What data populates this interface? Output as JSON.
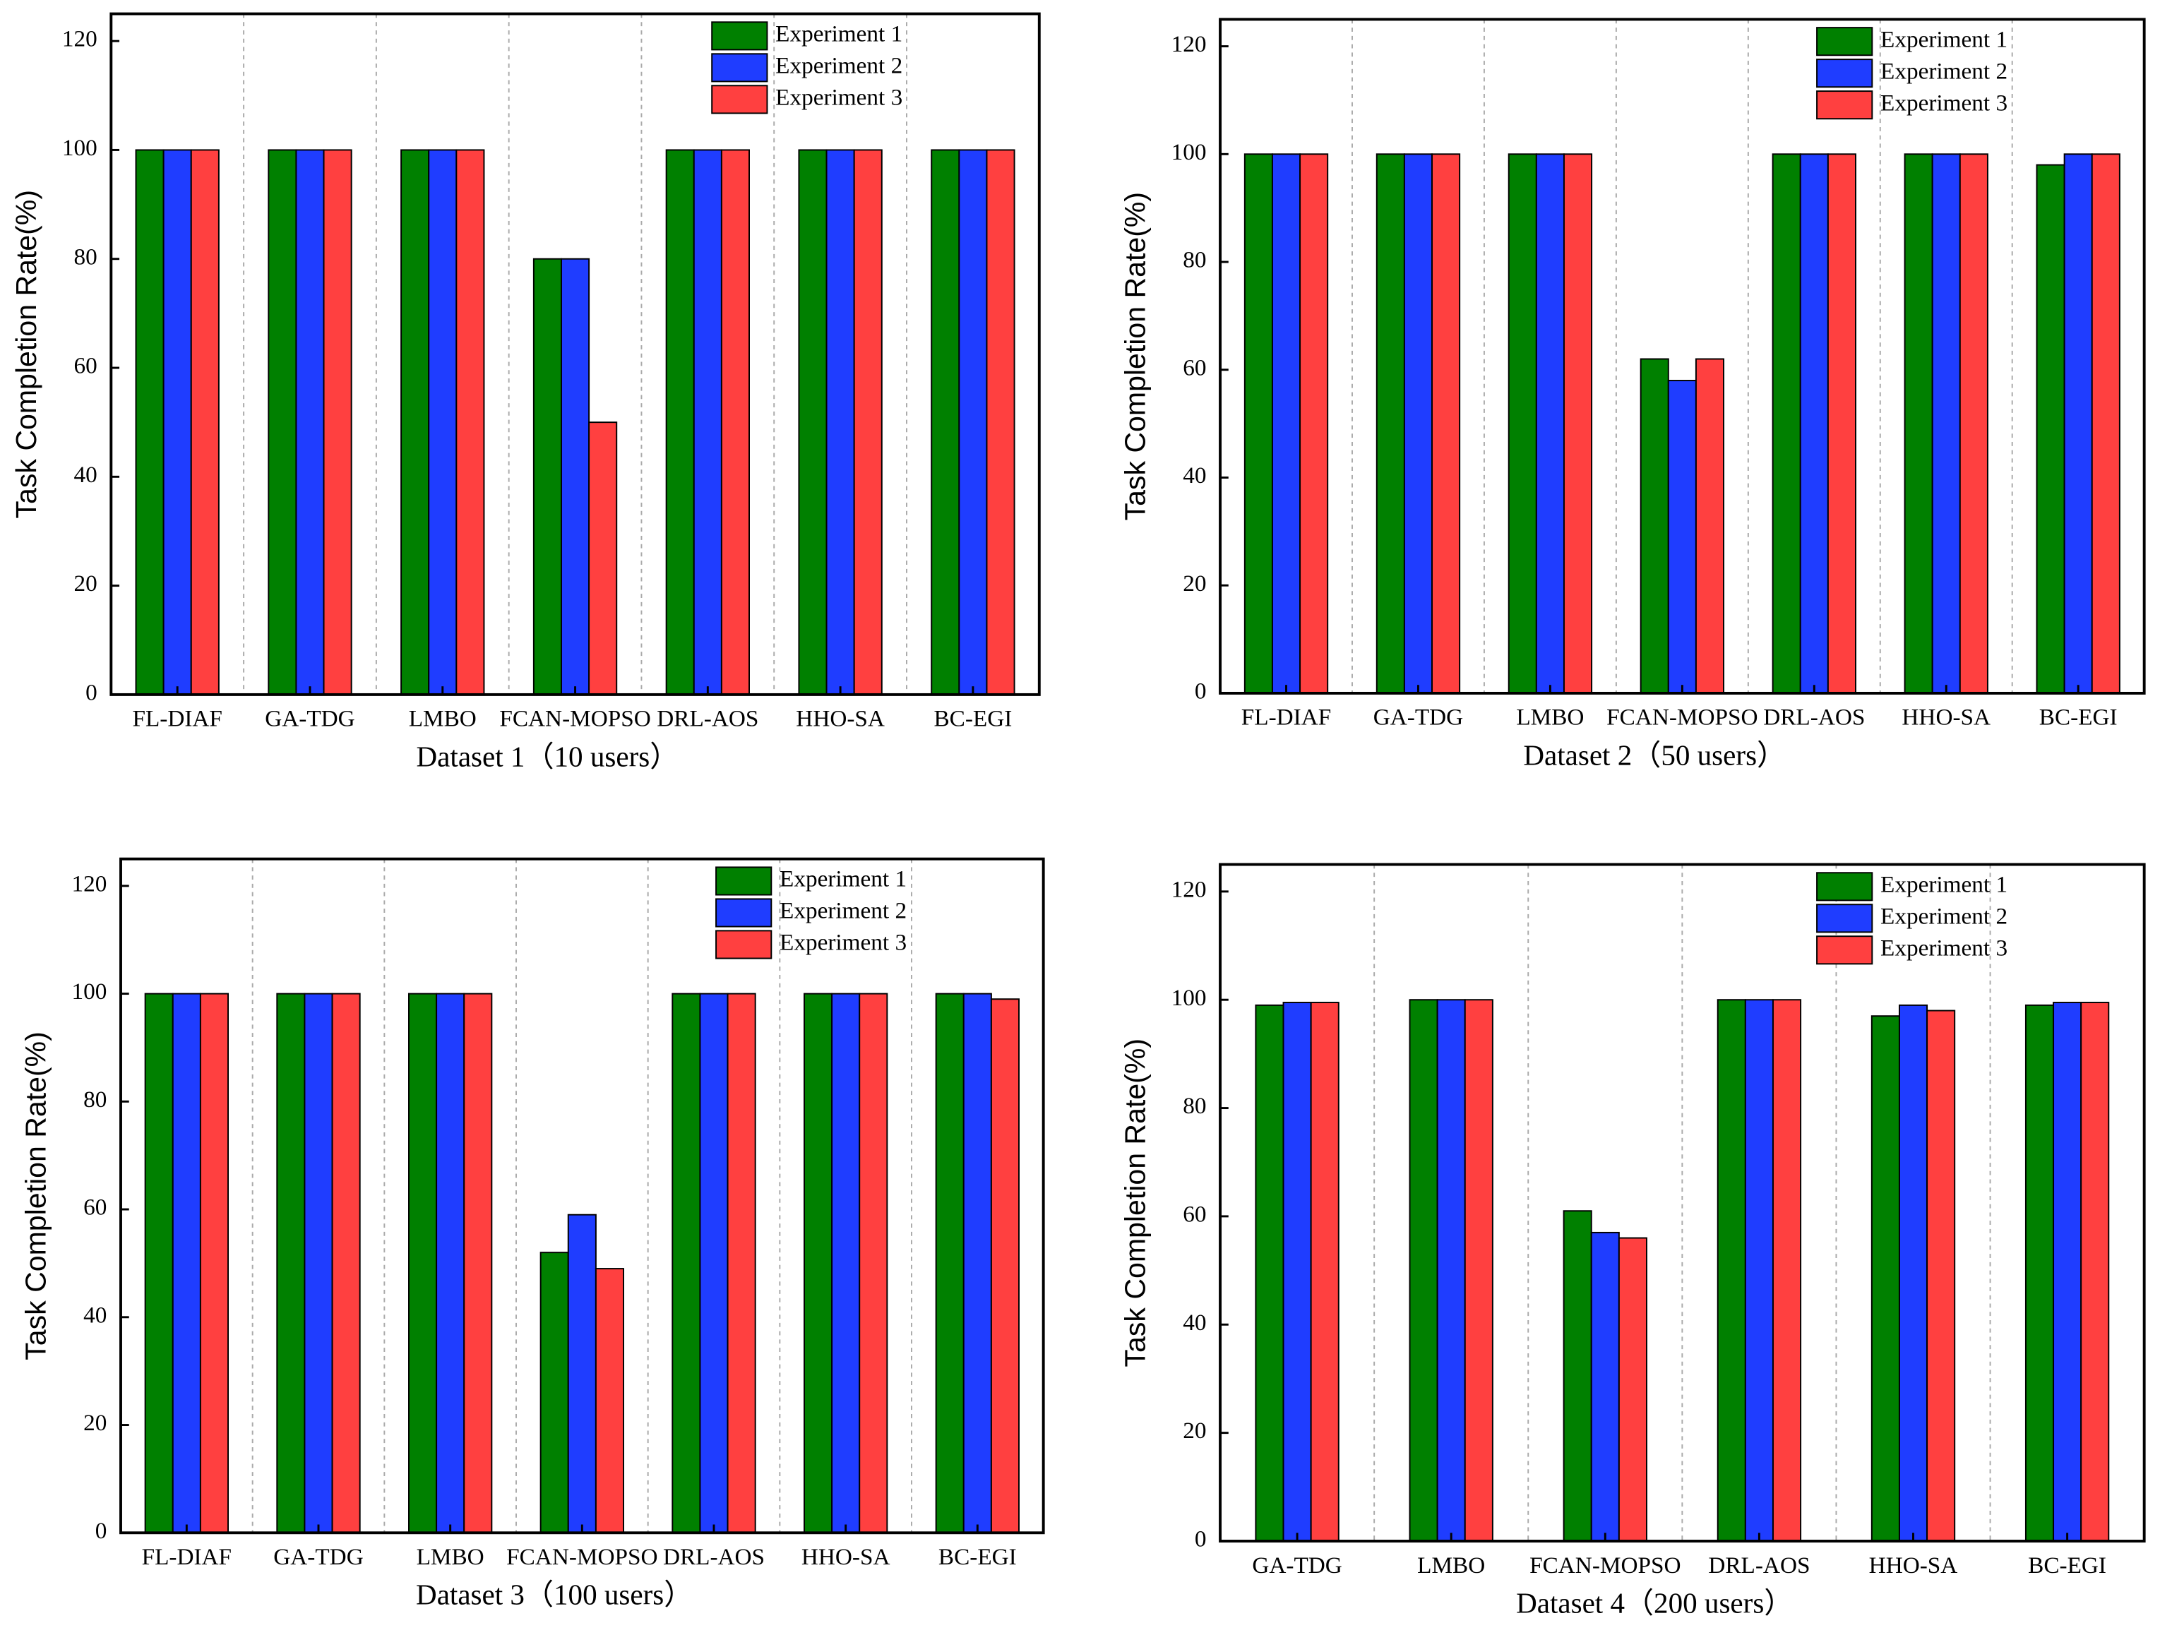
{
  "chart_data": [
    {
      "type": "bar",
      "x_label": "Dataset 1（10 users）",
      "y_label": "Task Completion Rate(%)",
      "categories": [
        "FL-DIAF",
        "GA-TDG",
        "LMBO",
        "FCAN-MOPSO",
        "DRL-AOS",
        "HHO-SA",
        "BC-EGI"
      ],
      "series": [
        {
          "name": "Experiment 1",
          "color": "#008000",
          "values": [
            100,
            100,
            100,
            80,
            100,
            100,
            100
          ]
        },
        {
          "name": "Experiment 2",
          "color": "#1f3dff",
          "values": [
            100,
            100,
            100,
            80,
            100,
            100,
            100
          ]
        },
        {
          "name": "Experiment 3",
          "color": "#ff4040",
          "values": [
            100,
            100,
            100,
            50,
            100,
            100,
            100
          ]
        }
      ],
      "ylim": [
        0,
        125
      ],
      "yticks": [
        0,
        20,
        40,
        60,
        80,
        100,
        120
      ],
      "legend": "upper right"
    },
    {
      "type": "bar",
      "x_label": "Dataset 2（50 users）",
      "y_label": "Task Completion Rate(%)",
      "categories": [
        "FL-DIAF",
        "GA-TDG",
        "LMBO",
        "FCAN-MOPSO",
        "DRL-AOS",
        "HHO-SA",
        "BC-EGI"
      ],
      "series": [
        {
          "name": "Experiment 1",
          "color": "#008000",
          "values": [
            100,
            100,
            100,
            62,
            100,
            100,
            98
          ]
        },
        {
          "name": "Experiment 2",
          "color": "#1f3dff",
          "values": [
            100,
            100,
            100,
            58,
            100,
            100,
            100
          ]
        },
        {
          "name": "Experiment 3",
          "color": "#ff4040",
          "values": [
            100,
            100,
            100,
            62,
            100,
            100,
            100
          ]
        }
      ],
      "ylim": [
        0,
        125
      ],
      "yticks": [
        0,
        20,
        40,
        60,
        80,
        100,
        120
      ],
      "legend": "upper right"
    },
    {
      "type": "bar",
      "x_label": "Dataset 3（100 users）",
      "y_label": "Task Completion Rate(%)",
      "categories": [
        "FL-DIAF",
        "GA-TDG",
        "LMBO",
        "FCAN-MOPSO",
        "DRL-AOS",
        "HHO-SA",
        "BC-EGI"
      ],
      "series": [
        {
          "name": "Experiment 1",
          "color": "#008000",
          "values": [
            100,
            100,
            100,
            52,
            100,
            100,
            100
          ]
        },
        {
          "name": "Experiment 2",
          "color": "#1f3dff",
          "values": [
            100,
            100,
            100,
            59,
            100,
            100,
            100
          ]
        },
        {
          "name": "Experiment 3",
          "color": "#ff4040",
          "values": [
            100,
            100,
            100,
            49,
            100,
            100,
            99
          ]
        }
      ],
      "ylim": [
        0,
        125
      ],
      "yticks": [
        0,
        20,
        40,
        60,
        80,
        100,
        120
      ],
      "legend": "upper right"
    },
    {
      "type": "bar",
      "x_label": "Dataset 4（200 users）",
      "y_label": "Task Completion Rate(%)",
      "categories": [
        "GA-TDG",
        "LMBO",
        "FCAN-MOPSO",
        "DRL-AOS",
        "HHO-SA",
        "BC-EGI"
      ],
      "series": [
        {
          "name": "Experiment 1",
          "color": "#008000",
          "values": [
            99,
            100,
            61,
            100,
            97,
            99
          ]
        },
        {
          "name": "Experiment 2",
          "color": "#1f3dff",
          "values": [
            99.5,
            100,
            57,
            100,
            99,
            99.5
          ]
        },
        {
          "name": "Experiment 3",
          "color": "#ff4040",
          "values": [
            99.5,
            100,
            56,
            100,
            98,
            99.5
          ]
        }
      ],
      "ylim": [
        0,
        125
      ],
      "yticks": [
        0,
        20,
        40,
        60,
        80,
        100,
        120
      ],
      "legend": "upper right"
    }
  ]
}
